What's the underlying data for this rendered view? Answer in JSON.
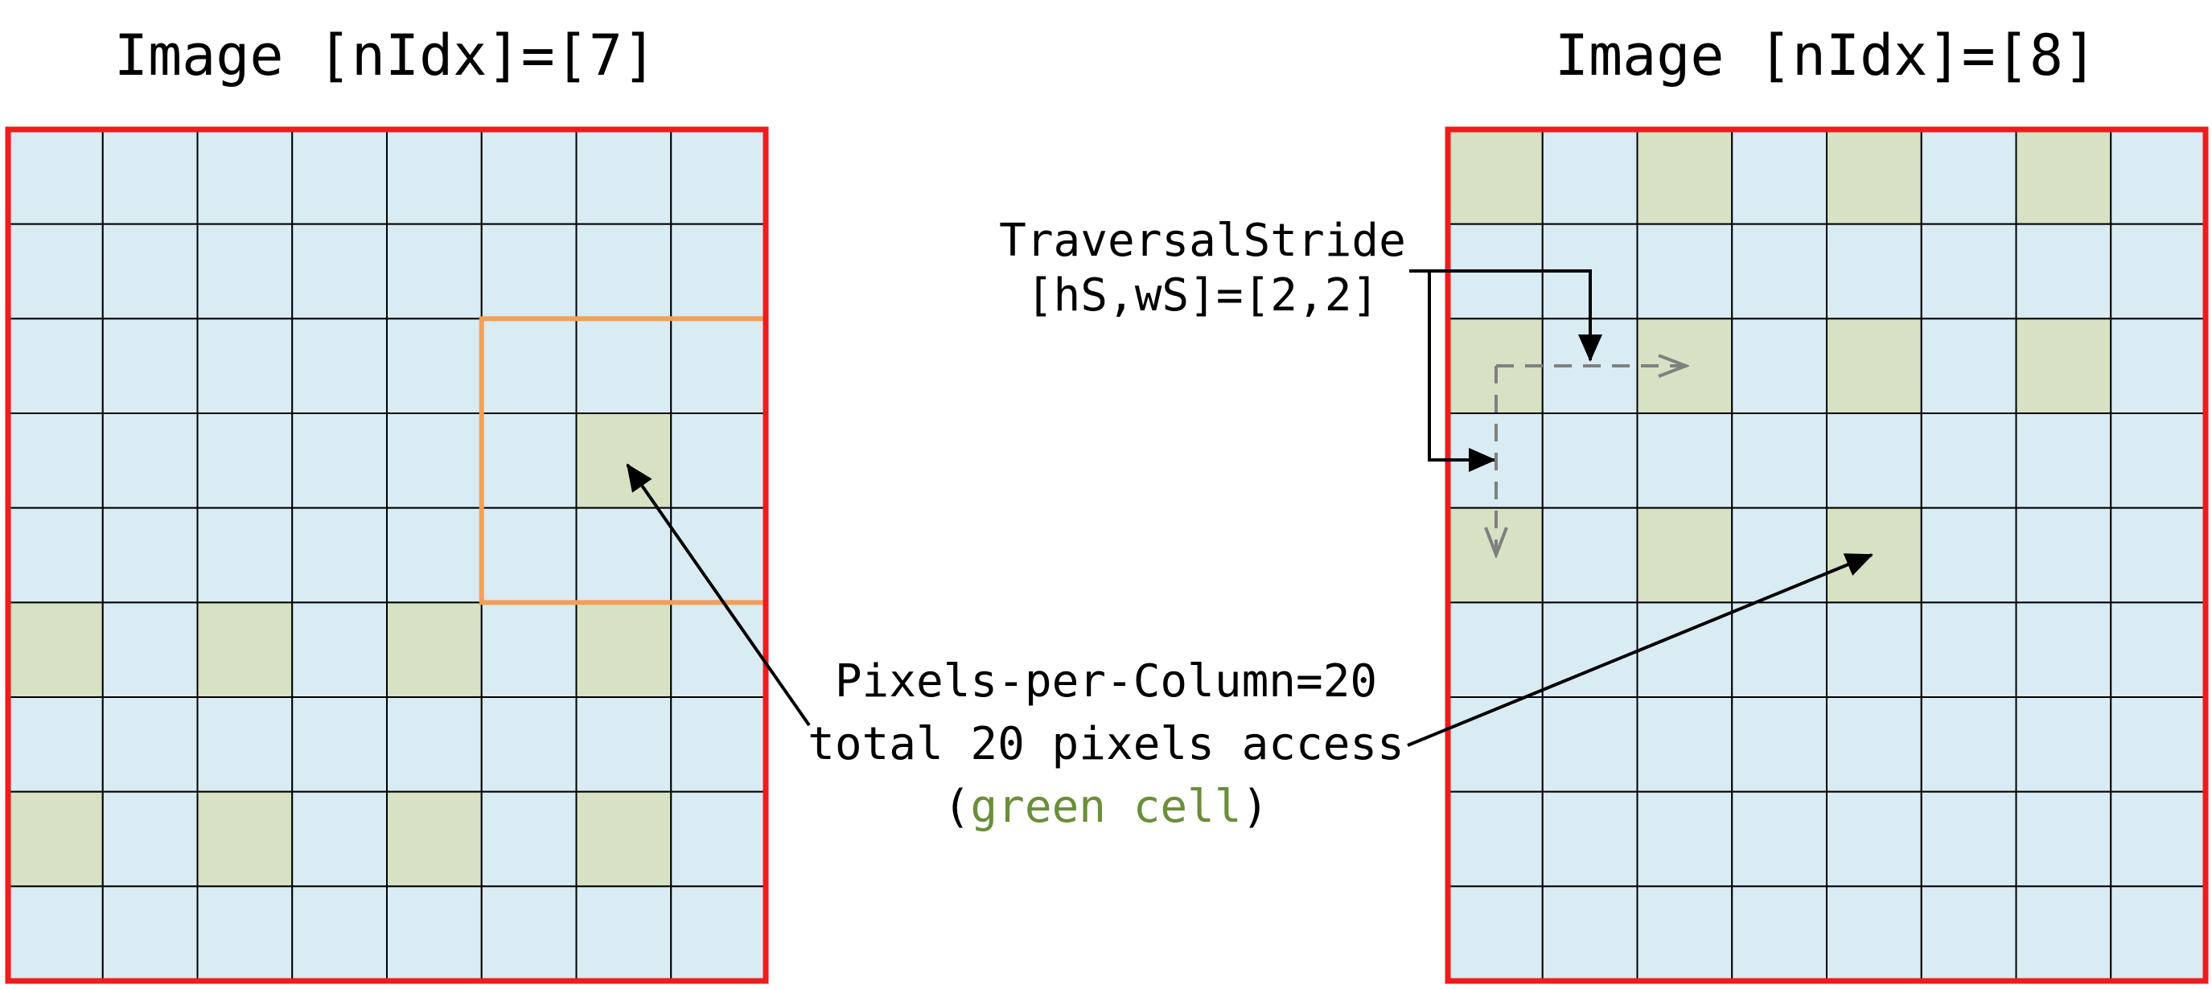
{
  "images": [
    {
      "title": "Image [nIdx]=[7]",
      "rows": 9,
      "cols": 8,
      "green_cells": [
        [
          3,
          6
        ],
        [
          5,
          0
        ],
        [
          5,
          2
        ],
        [
          5,
          4
        ],
        [
          5,
          6
        ],
        [
          7,
          0
        ],
        [
          7,
          2
        ],
        [
          7,
          4
        ],
        [
          7,
          6
        ]
      ],
      "highlight_window": {
        "row": 2,
        "col": 5,
        "rows": 3,
        "cols": 3
      }
    },
    {
      "title": "Image [nIdx]=[8]",
      "rows": 9,
      "cols": 8,
      "green_cells": [
        [
          0,
          0
        ],
        [
          0,
          2
        ],
        [
          0,
          4
        ],
        [
          0,
          6
        ],
        [
          2,
          0
        ],
        [
          2,
          2
        ],
        [
          2,
          4
        ],
        [
          2,
          6
        ],
        [
          4,
          0
        ],
        [
          4,
          2
        ],
        [
          4,
          4
        ]
      ],
      "highlight_window": null
    }
  ],
  "stride_label": {
    "line1": "TraversalStride",
    "line2": "[hS,wS]=[2,2]"
  },
  "pixels_label": {
    "line1": "Pixels-per-Column=20",
    "line2": "total 20 pixels access",
    "line3_open": "(",
    "line3_green": "green cell",
    "line3_close": ")"
  },
  "colors": {
    "cell_fill": "#d9ebf3",
    "green_fill": "#d6e2c3",
    "grid_line": "#000000",
    "frame": "#ee1c1c",
    "window": "#f0a05a",
    "green_text": "#6b8e3a",
    "dashed": "#808080"
  }
}
